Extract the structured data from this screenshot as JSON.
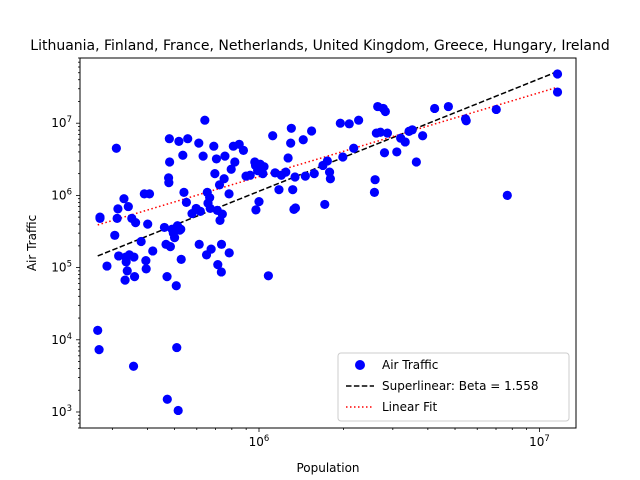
{
  "chart_data": {
    "type": "scatter",
    "title": "Lithuania, Finland, France, Netherlands, United Kingdom, Greece, Hungary, Ireland",
    "xlabel": "Population",
    "ylabel": "Air Traffic",
    "x_scale": "log",
    "y_scale": "log",
    "xlim": [
      230000,
      13500000
    ],
    "ylim": [
      600,
      80000000
    ],
    "x_ticks": [
      {
        "value": 1000000,
        "base": "10",
        "exp": "6"
      },
      {
        "value": 10000000,
        "base": "10",
        "exp": "7"
      }
    ],
    "y_ticks": [
      {
        "value": 1000,
        "base": "10",
        "exp": "3"
      },
      {
        "value": 10000,
        "base": "10",
        "exp": "4"
      },
      {
        "value": 100000,
        "base": "10",
        "exp": "5"
      },
      {
        "value": 1000000,
        "base": "10",
        "exp": "6"
      },
      {
        "value": 10000000,
        "base": "10",
        "exp": "7"
      }
    ],
    "grid": false,
    "legend_position": "lower-right",
    "series": [
      {
        "name": "Air Traffic",
        "kind": "points",
        "color": "#0000ff",
        "points": [
          [
            266000,
            13500
          ],
          [
            269000,
            7300
          ],
          [
            271000,
            480000
          ],
          [
            271000,
            500000
          ],
          [
            287000,
            105000
          ],
          [
            306000,
            280000
          ],
          [
            310000,
            4500000
          ],
          [
            312000,
            480000
          ],
          [
            314000,
            650000
          ],
          [
            316000,
            145000
          ],
          [
            330000,
            900000
          ],
          [
            333000,
            67000
          ],
          [
            335000,
            140000
          ],
          [
            336000,
            120000
          ],
          [
            339000,
            90000
          ],
          [
            342000,
            700000
          ],
          [
            345000,
            150000
          ],
          [
            352000,
            480000
          ],
          [
            357000,
            4300
          ],
          [
            358000,
            140000
          ],
          [
            360000,
            75000
          ],
          [
            363000,
            420000
          ],
          [
            380000,
            230000
          ],
          [
            390000,
            1050000
          ],
          [
            395000,
            125000
          ],
          [
            396000,
            96000
          ],
          [
            401000,
            400000
          ],
          [
            407000,
            1050000
          ],
          [
            418000,
            170000
          ],
          [
            460000,
            360000
          ],
          [
            466000,
            210000
          ],
          [
            470000,
            75000
          ],
          [
            471000,
            1500
          ],
          [
            476000,
            1750000
          ],
          [
            477000,
            1500000
          ],
          [
            479000,
            6100000
          ],
          [
            480000,
            2900000
          ],
          [
            483000,
            195000
          ],
          [
            490000,
            340000
          ],
          [
            495000,
            300000
          ],
          [
            500000,
            260000
          ],
          [
            507000,
            56000
          ],
          [
            509000,
            7800
          ],
          [
            512000,
            380000
          ],
          [
            515000,
            1050
          ],
          [
            518000,
            5600000
          ],
          [
            522000,
            330000
          ],
          [
            526000,
            340000
          ],
          [
            528000,
            130000
          ],
          [
            535000,
            3600000
          ],
          [
            540000,
            1100000
          ],
          [
            551000,
            800000
          ],
          [
            557000,
            6100000
          ],
          [
            577000,
            560000
          ],
          [
            597000,
            660000
          ],
          [
            610000,
            5300000
          ],
          [
            612000,
            210000
          ],
          [
            618000,
            600000
          ],
          [
            632000,
            3500000
          ],
          [
            641000,
            11000000
          ],
          [
            650000,
            150000
          ],
          [
            654000,
            1100000
          ],
          [
            658000,
            780000
          ],
          [
            667000,
            930000
          ],
          [
            670000,
            660000
          ],
          [
            675000,
            180000
          ],
          [
            690000,
            4800000
          ],
          [
            696000,
            2000000
          ],
          [
            705000,
            3200000
          ],
          [
            710000,
            620000
          ],
          [
            713000,
            110000
          ],
          [
            723000,
            1400000
          ],
          [
            726000,
            450000
          ],
          [
            734000,
            87000
          ],
          [
            735000,
            210000
          ],
          [
            740000,
            550000
          ],
          [
            751000,
            1700000
          ],
          [
            756000,
            3500000
          ],
          [
            782000,
            1050000
          ],
          [
            783000,
            160000
          ],
          [
            796000,
            2300000
          ],
          [
            810000,
            4800000
          ],
          [
            820000,
            2900000
          ],
          [
            850000,
            5100000
          ],
          [
            880000,
            4200000
          ],
          [
            899000,
            1850000
          ],
          [
            930000,
            1900000
          ],
          [
            966000,
            2900000
          ],
          [
            972000,
            2600000
          ],
          [
            975000,
            630000
          ],
          [
            989000,
            2200000
          ],
          [
            1000000,
            820000
          ],
          [
            1010000,
            2700000
          ],
          [
            1032000,
            2000000
          ],
          [
            1042000,
            2500000
          ],
          [
            1080000,
            77000
          ],
          [
            1119000,
            6700000
          ],
          [
            1141000,
            2050000
          ],
          [
            1178000,
            1200000
          ],
          [
            1201000,
            1900000
          ],
          [
            1246000,
            2100000
          ],
          [
            1270000,
            3300000
          ],
          [
            1297000,
            5300000
          ],
          [
            1304000,
            8500000
          ],
          [
            1319000,
            1200000
          ],
          [
            1332000,
            640000
          ],
          [
            1344000,
            1800000
          ],
          [
            1349000,
            670000
          ],
          [
            1438000,
            5900000
          ],
          [
            1463000,
            1850000
          ],
          [
            1540000,
            7800000
          ],
          [
            1574000,
            2000000
          ],
          [
            1690000,
            2600000
          ],
          [
            1716000,
            750000
          ],
          [
            1753000,
            3000000
          ],
          [
            1785000,
            2100000
          ],
          [
            1797000,
            1700000
          ],
          [
            1950000,
            10000000
          ],
          [
            1990000,
            3400000
          ],
          [
            2098000,
            9800000
          ],
          [
            2176000,
            4500000
          ],
          [
            2266000,
            11000000
          ],
          [
            2580000,
            1100000
          ],
          [
            2594000,
            1650000
          ],
          [
            2621000,
            7300000
          ],
          [
            2650000,
            17000000
          ],
          [
            2708000,
            7500000
          ],
          [
            2776000,
            16000000
          ],
          [
            2802000,
            3900000
          ],
          [
            2822000,
            14500000
          ],
          [
            2870000,
            7300000
          ],
          [
            3100000,
            4000000
          ],
          [
            3200000,
            6200000
          ],
          [
            3321000,
            5500000
          ],
          [
            3427000,
            7700000
          ],
          [
            3520000,
            8100000
          ],
          [
            3640000,
            2900000
          ],
          [
            3833000,
            6700000
          ],
          [
            4229000,
            16000000
          ],
          [
            4735000,
            17000000
          ],
          [
            5450000,
            11500000
          ],
          [
            5480000,
            10800000
          ],
          [
            7015000,
            15500000
          ],
          [
            7680000,
            1000000
          ],
          [
            11600000,
            48000000
          ],
          [
            11600000,
            27000000
          ]
        ]
      },
      {
        "name": "Superlinear: Beta = 1.558",
        "kind": "line",
        "color": "#000000",
        "dash": "dashed",
        "points": [
          [
            266000,
            145000
          ],
          [
            11600000,
            52000000
          ]
        ]
      },
      {
        "name": "Linear Fit",
        "kind": "line",
        "color": "#ff0000",
        "dash": "dotted",
        "points": [
          [
            266000,
            390000
          ],
          [
            11600000,
            31500000
          ]
        ]
      }
    ]
  }
}
